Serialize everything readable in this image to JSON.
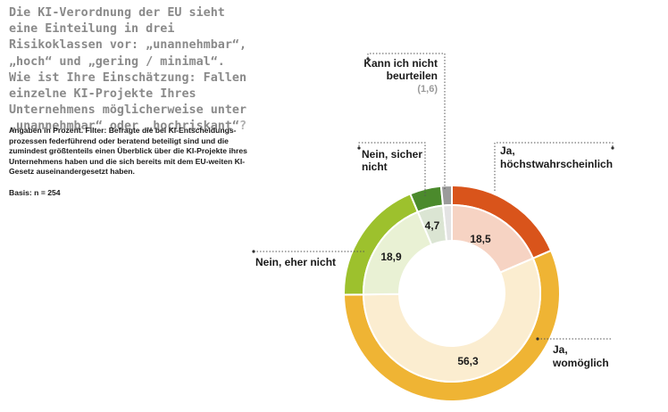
{
  "headline": {
    "text": "Die KI-Verordnung der EU sieht eine Einteilung in drei Risikoklassen vor: „unannehmbar“, „hoch“ und „gering / minimal“. Wie ist Ihre Einschätzung: Fallen einzelne KI-Projekte Ihres Unternehmens möglicherweise unter „unannehmbar“ oder „hochriskant“"
  },
  "subtitle": "Angaben in Prozent. Filter: Befragte die bei KI-Entscheidungs-prozessen federführend oder beratend beteiligt sind und die zumindest größtenteils einen Überblick über die KI-Projekte ihres Unternehmens haben und die sich bereits mit dem EU-weiten KI-Gesetz auseinandergesetzt haben.",
  "basis": "Basis: n = 254",
  "chart_data": {
    "type": "pie",
    "variant": "donut",
    "start_angle_deg": 0,
    "direction": "clockwise",
    "series": [
      {
        "name": "Ja, höchstwahrscheinlich",
        "value": 18.5,
        "label": "18,5",
        "outer_color": "#d9541b",
        "inner_color": "#f6d3c3"
      },
      {
        "name": "Ja, womöglich",
        "value": 56.3,
        "label": "56,3",
        "outer_color": "#efb434",
        "inner_color": "#fbedd0"
      },
      {
        "name": "Nein, eher nicht",
        "value": 18.9,
        "label": "18,9",
        "outer_color": "#9dc12d",
        "inner_color": "#e9f1d4"
      },
      {
        "name": "Nein, sicher nicht",
        "value": 4.7,
        "label": "4,7",
        "outer_color": "#4b8a2c",
        "inner_color": "#dbe5d3"
      },
      {
        "name": "Kann ich nicht beurteilen",
        "value": 1.6,
        "label": "(1,6)",
        "outer_color": "#9b9b9b",
        "inner_color": "#e3e3e3"
      }
    ]
  },
  "callouts": {
    "ja_hoechst": {
      "line1": "Ja,",
      "line2": "höchstwahrscheinlich"
    },
    "ja_womoeglich": {
      "line1": "Ja,",
      "line2": "womöglich"
    },
    "nein_eher": {
      "line1": "Nein, eher nicht"
    },
    "nein_sicher": {
      "line1": "Nein, sicher",
      "line2": "nicht"
    },
    "kann_nicht": {
      "line1": "Kann ich nicht",
      "line2": "beurteilen",
      "line3": "(1,6)"
    }
  },
  "colors": {
    "headline": "#8a8a8a",
    "leader": "#555555"
  }
}
